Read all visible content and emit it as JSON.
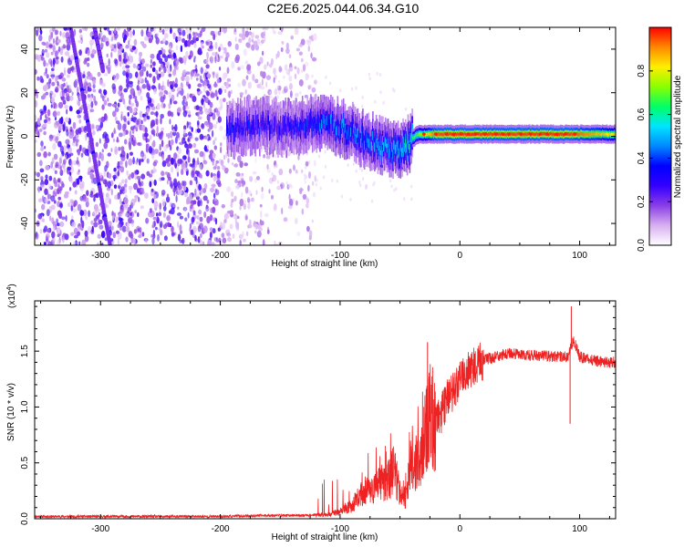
{
  "figure": {
    "title": "C2E6.2025.044.06.34.G10"
  },
  "chart_data": [
    {
      "type": "heatmap",
      "xlabel": "Height of straight line (km)",
      "ylabel": "Frequency (Hz)",
      "xlim": [
        -355,
        130
      ],
      "ylim": [
        -50,
        50
      ],
      "xticks": [
        -300,
        -200,
        -100,
        0,
        100
      ],
      "xtick_labels": [
        "-300",
        "-200",
        "-100",
        "0",
        "100"
      ],
      "yticks": [
        -40,
        -20,
        0,
        20,
        40
      ],
      "ytick_labels": [
        "-40",
        "-20",
        "0",
        "20",
        "40"
      ],
      "colorbar": {
        "label": "Normalized spectral amplitude",
        "range": [
          0,
          1
        ],
        "ticks": [
          0.0,
          0.2,
          0.4,
          0.6,
          0.8
        ],
        "tick_labels": [
          "0.0",
          "0.2",
          "0.4",
          "0.6",
          "0.8"
        ],
        "colormap": [
          "#ffffff",
          "#d8b0f0",
          "#8a3ee6",
          "#3300ff",
          "#0000ff",
          "#0088ff",
          "#00e5ff",
          "#00ff66",
          "#8aff00",
          "#ffee00",
          "#ff8800",
          "#ff0000"
        ]
      },
      "noise_region_x": [
        -355,
        -120
      ],
      "tone_centerline": [
        [
          -195,
          3
        ],
        [
          -170,
          5
        ],
        [
          -150,
          4
        ],
        [
          -130,
          5
        ],
        [
          -115,
          6
        ],
        [
          -100,
          4
        ],
        [
          -90,
          2
        ],
        [
          -80,
          -2
        ],
        [
          -70,
          -3
        ],
        [
          -60,
          -5
        ],
        [
          -50,
          -6
        ],
        [
          -45,
          -5
        ],
        [
          -40,
          -1
        ],
        [
          -35,
          1
        ],
        [
          -20,
          1
        ],
        [
          0,
          1
        ],
        [
          50,
          1
        ],
        [
          100,
          1
        ],
        [
          130,
          1
        ]
      ],
      "tone_peak_amplitude": [
        [
          -195,
          0.35
        ],
        [
          -150,
          0.3
        ],
        [
          -120,
          0.4
        ],
        [
          -100,
          0.45
        ],
        [
          -80,
          0.45
        ],
        [
          -60,
          0.5
        ],
        [
          -45,
          0.6
        ],
        [
          -35,
          0.7
        ],
        [
          -20,
          0.95
        ],
        [
          0,
          0.97
        ],
        [
          50,
          0.96
        ],
        [
          90,
          0.97
        ],
        [
          130,
          0.8
        ]
      ],
      "streaks": [
        {
          "from": [
            -325,
            50
          ],
          "to": [
            -292,
            -50
          ]
        },
        {
          "from": [
            -305,
            50
          ],
          "to": [
            -298,
            30
          ]
        }
      ]
    },
    {
      "type": "line",
      "xlabel": "Height of straight line (km)",
      "ylabel": "SNR (10 * v/v)",
      "y_multiplier": "(x10",
      "y_multiplier_exponent": "4",
      "y_multiplier_close": ")",
      "xlim": [
        -355,
        130
      ],
      "ylim": [
        0,
        1.95
      ],
      "xticks": [
        -300,
        -200,
        -100,
        0,
        100
      ],
      "xtick_labels": [
        "-300",
        "-200",
        "-100",
        "0",
        "100"
      ],
      "yticks": [
        0,
        0.5,
        1.0,
        1.5
      ],
      "ytick_labels": [
        "0.0",
        "0.5",
        "1.0",
        "1.5"
      ],
      "color": "#ee2222",
      "series": [
        {
          "x": [
            -355,
            -300,
            -250,
            -200,
            -160,
            -130,
            -110,
            -100,
            -90,
            -80,
            -70,
            -60,
            -55,
            -50,
            -45,
            -40,
            -35,
            -30,
            -25,
            -20,
            -15,
            -10,
            -5,
            0,
            10,
            20,
            30,
            40,
            50,
            60,
            70,
            80,
            90,
            95,
            100,
            110,
            120,
            130
          ],
          "y": [
            0.02,
            0.02,
            0.02,
            0.02,
            0.03,
            0.03,
            0.04,
            0.06,
            0.12,
            0.25,
            0.28,
            0.35,
            0.45,
            0.25,
            0.18,
            0.55,
            0.45,
            0.7,
            0.9,
            0.85,
            0.95,
            1.1,
            1.15,
            1.25,
            1.35,
            1.42,
            1.45,
            1.48,
            1.47,
            1.46,
            1.46,
            1.45,
            1.45,
            1.6,
            1.45,
            1.42,
            1.4,
            1.4
          ]
        }
      ],
      "annotations": [
        {
          "x": -27,
          "y": 1.58
        },
        {
          "x": 93,
          "y": 1.9
        },
        {
          "x": 92,
          "y": 0.85
        }
      ]
    }
  ]
}
